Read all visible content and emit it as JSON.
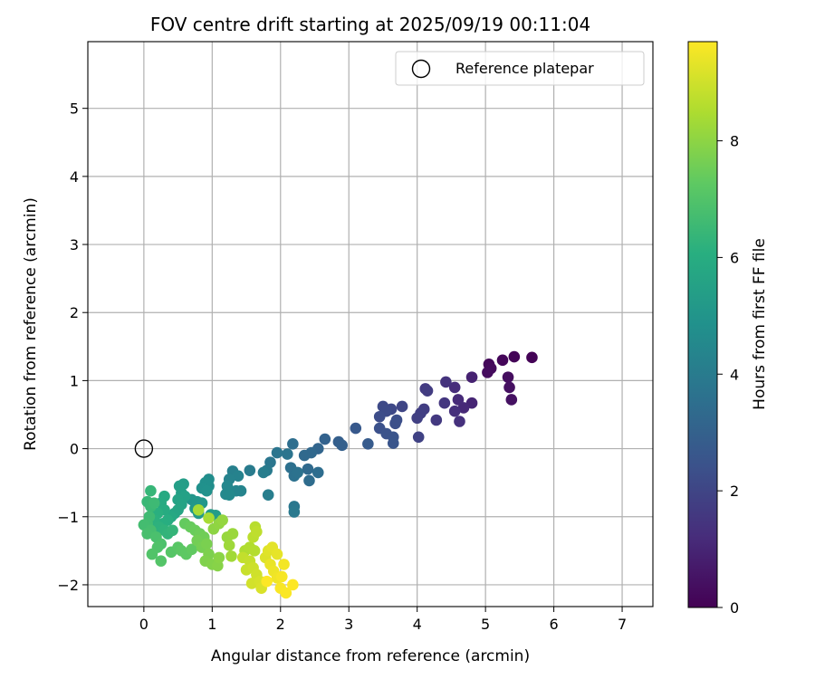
{
  "chart_data": {
    "type": "scatter",
    "title": "FOV centre drift starting at 2025/09/19 00:11:04",
    "xlabel": "Angular distance from reference (arcmin)",
    "ylabel": "Rotation from reference (arcmin)",
    "xlim": [
      -0.82,
      7.45
    ],
    "ylim": [
      -2.32,
      5.98
    ],
    "xticks": [
      0,
      1,
      2,
      3,
      4,
      5,
      6,
      7
    ],
    "yticks": [
      -2,
      -1,
      0,
      1,
      2,
      3,
      4,
      5
    ],
    "grid": true,
    "legend": {
      "position": "top-right",
      "label": "Reference platepar"
    },
    "reference_point": {
      "x": 0,
      "y": 0
    },
    "colorbar": {
      "label": "Hours from first FF file",
      "min": 0,
      "max": 9.7,
      "ticks": [
        0,
        2,
        4,
        6,
        8
      ],
      "colormap": "viridis"
    },
    "points": [
      {
        "x": 5.68,
        "y": 1.34,
        "h": 0.05
      },
      {
        "x": 5.42,
        "y": 1.35,
        "h": 0.1
      },
      {
        "x": 5.25,
        "y": 1.3,
        "h": 0.15
      },
      {
        "x": 5.05,
        "y": 1.24,
        "h": 0.2
      },
      {
        "x": 5.08,
        "y": 1.18,
        "h": 0.25
      },
      {
        "x": 5.03,
        "y": 1.12,
        "h": 0.3
      },
      {
        "x": 5.33,
        "y": 1.05,
        "h": 0.35
      },
      {
        "x": 5.35,
        "y": 0.9,
        "h": 0.4
      },
      {
        "x": 5.38,
        "y": 0.72,
        "h": 0.45
      },
      {
        "x": 4.8,
        "y": 1.05,
        "h": 0.9
      },
      {
        "x": 4.8,
        "y": 0.67,
        "h": 1.0
      },
      {
        "x": 4.68,
        "y": 0.6,
        "h": 1.1
      },
      {
        "x": 4.6,
        "y": 0.72,
        "h": 1.15
      },
      {
        "x": 4.55,
        "y": 0.9,
        "h": 1.2
      },
      {
        "x": 4.55,
        "y": 0.55,
        "h": 1.3
      },
      {
        "x": 4.62,
        "y": 0.4,
        "h": 1.35
      },
      {
        "x": 4.42,
        "y": 0.98,
        "h": 1.4
      },
      {
        "x": 4.4,
        "y": 0.67,
        "h": 1.5
      },
      {
        "x": 4.28,
        "y": 0.42,
        "h": 1.6
      },
      {
        "x": 4.12,
        "y": 0.88,
        "h": 1.65
      },
      {
        "x": 4.15,
        "y": 0.85,
        "h": 1.7
      },
      {
        "x": 4.1,
        "y": 0.58,
        "h": 1.75
      },
      {
        "x": 4.05,
        "y": 0.52,
        "h": 1.8
      },
      {
        "x": 4.0,
        "y": 0.45,
        "h": 1.85
      },
      {
        "x": 4.02,
        "y": 0.17,
        "h": 1.9
      },
      {
        "x": 3.78,
        "y": 0.62,
        "h": 2.0
      },
      {
        "x": 3.62,
        "y": 0.58,
        "h": 2.1
      },
      {
        "x": 3.5,
        "y": 0.62,
        "h": 2.15
      },
      {
        "x": 3.55,
        "y": 0.55,
        "h": 2.2
      },
      {
        "x": 3.45,
        "y": 0.47,
        "h": 2.25
      },
      {
        "x": 3.7,
        "y": 0.42,
        "h": 2.3
      },
      {
        "x": 3.68,
        "y": 0.37,
        "h": 2.35
      },
      {
        "x": 3.45,
        "y": 0.3,
        "h": 2.4
      },
      {
        "x": 3.55,
        "y": 0.22,
        "h": 2.45
      },
      {
        "x": 3.65,
        "y": 0.17,
        "h": 2.5
      },
      {
        "x": 3.65,
        "y": 0.08,
        "h": 2.55
      },
      {
        "x": 3.1,
        "y": 0.3,
        "h": 2.7
      },
      {
        "x": 3.28,
        "y": 0.07,
        "h": 2.75
      },
      {
        "x": 2.85,
        "y": 0.1,
        "h": 2.9
      },
      {
        "x": 2.9,
        "y": 0.05,
        "h": 2.95
      },
      {
        "x": 2.65,
        "y": 0.14,
        "h": 3.05
      },
      {
        "x": 2.55,
        "y": 0.0,
        "h": 3.15
      },
      {
        "x": 2.45,
        "y": -0.06,
        "h": 3.25
      },
      {
        "x": 2.35,
        "y": -0.1,
        "h": 3.3
      },
      {
        "x": 2.4,
        "y": -0.3,
        "h": 3.35
      },
      {
        "x": 2.42,
        "y": -0.47,
        "h": 3.4
      },
      {
        "x": 2.55,
        "y": -0.35,
        "h": 3.45
      },
      {
        "x": 2.18,
        "y": 0.07,
        "h": 3.5
      },
      {
        "x": 2.15,
        "y": -0.28,
        "h": 3.55
      },
      {
        "x": 2.2,
        "y": -0.4,
        "h": 3.6
      },
      {
        "x": 2.25,
        "y": -0.35,
        "h": 3.65
      },
      {
        "x": 2.1,
        "y": -0.08,
        "h": 3.7
      },
      {
        "x": 1.95,
        "y": -0.06,
        "h": 3.75
      },
      {
        "x": 1.85,
        "y": -0.2,
        "h": 3.8
      },
      {
        "x": 2.2,
        "y": -0.85,
        "h": 3.85
      },
      {
        "x": 2.2,
        "y": -0.93,
        "h": 3.9
      },
      {
        "x": 1.8,
        "y": -0.32,
        "h": 3.95
      },
      {
        "x": 1.55,
        "y": -0.32,
        "h": 4.0
      },
      {
        "x": 1.75,
        "y": -0.35,
        "h": 4.05
      },
      {
        "x": 1.82,
        "y": -0.68,
        "h": 4.1
      },
      {
        "x": 1.3,
        "y": -0.33,
        "h": 4.2
      },
      {
        "x": 1.38,
        "y": -0.4,
        "h": 4.25
      },
      {
        "x": 1.25,
        "y": -0.45,
        "h": 4.3
      },
      {
        "x": 1.42,
        "y": -0.62,
        "h": 4.35
      },
      {
        "x": 1.35,
        "y": -0.62,
        "h": 4.4
      },
      {
        "x": 1.22,
        "y": -0.55,
        "h": 4.45
      },
      {
        "x": 1.2,
        "y": -0.67,
        "h": 4.5
      },
      {
        "x": 1.25,
        "y": -0.68,
        "h": 4.55
      },
      {
        "x": 0.95,
        "y": -0.45,
        "h": 4.7
      },
      {
        "x": 0.95,
        "y": -0.55,
        "h": 4.75
      },
      {
        "x": 0.9,
        "y": -0.5,
        "h": 4.8
      },
      {
        "x": 0.85,
        "y": -0.58,
        "h": 4.85
      },
      {
        "x": 0.92,
        "y": -0.62,
        "h": 4.9
      },
      {
        "x": 0.7,
        "y": -0.75,
        "h": 5.0
      },
      {
        "x": 0.78,
        "y": -0.78,
        "h": 5.05
      },
      {
        "x": 0.85,
        "y": -0.8,
        "h": 5.1
      },
      {
        "x": 0.75,
        "y": -0.88,
        "h": 5.15
      },
      {
        "x": 0.8,
        "y": -0.95,
        "h": 5.2
      },
      {
        "x": 0.98,
        "y": -0.97,
        "h": 5.25
      },
      {
        "x": 1.05,
        "y": -0.98,
        "h": 5.3
      },
      {
        "x": 0.58,
        "y": -0.52,
        "h": 5.35
      },
      {
        "x": 0.52,
        "y": -0.55,
        "h": 5.4
      },
      {
        "x": 0.55,
        "y": -0.65,
        "h": 5.45
      },
      {
        "x": 0.6,
        "y": -0.7,
        "h": 5.5
      },
      {
        "x": 0.5,
        "y": -0.75,
        "h": 5.55
      },
      {
        "x": 0.55,
        "y": -0.82,
        "h": 5.6
      },
      {
        "x": 0.5,
        "y": -0.9,
        "h": 5.65
      },
      {
        "x": 0.45,
        "y": -0.95,
        "h": 5.7
      },
      {
        "x": 0.4,
        "y": -1.0,
        "h": 5.8
      },
      {
        "x": 0.3,
        "y": -0.7,
        "h": 5.85
      },
      {
        "x": 0.25,
        "y": -0.8,
        "h": 5.9
      },
      {
        "x": 0.3,
        "y": -0.9,
        "h": 5.95
      },
      {
        "x": 0.35,
        "y": -1.05,
        "h": 6.0
      },
      {
        "x": 0.28,
        "y": -1.1,
        "h": 6.05
      },
      {
        "x": 0.2,
        "y": -0.95,
        "h": 6.1
      },
      {
        "x": 0.15,
        "y": -1.05,
        "h": 6.15
      },
      {
        "x": 0.22,
        "y": -1.15,
        "h": 6.2
      },
      {
        "x": 0.3,
        "y": -1.2,
        "h": 6.25
      },
      {
        "x": 0.35,
        "y": -1.25,
        "h": 6.3
      },
      {
        "x": 0.42,
        "y": -1.2,
        "h": 6.35
      },
      {
        "x": 0.1,
        "y": -0.62,
        "h": 6.4
      },
      {
        "x": 0.05,
        "y": -0.78,
        "h": 6.45
      },
      {
        "x": 0.1,
        "y": -0.85,
        "h": 6.5
      },
      {
        "x": 0.15,
        "y": -0.8,
        "h": 6.55
      },
      {
        "x": 0.08,
        "y": -1.0,
        "h": 6.6
      },
      {
        "x": 0.05,
        "y": -1.1,
        "h": 6.65
      },
      {
        "x": 0.0,
        "y": -1.12,
        "h": 6.7
      },
      {
        "x": 0.1,
        "y": -1.2,
        "h": 6.75
      },
      {
        "x": 0.05,
        "y": -1.25,
        "h": 6.8
      },
      {
        "x": 0.18,
        "y": -1.3,
        "h": 6.85
      },
      {
        "x": 0.25,
        "y": -1.4,
        "h": 6.9
      },
      {
        "x": 0.2,
        "y": -1.45,
        "h": 6.95
      },
      {
        "x": 0.12,
        "y": -1.55,
        "h": 7.0
      },
      {
        "x": 0.25,
        "y": -1.65,
        "h": 7.05
      },
      {
        "x": 0.4,
        "y": -1.52,
        "h": 7.1
      },
      {
        "x": 0.5,
        "y": -1.45,
        "h": 7.15
      },
      {
        "x": 0.55,
        "y": -1.5,
        "h": 7.2
      },
      {
        "x": 0.62,
        "y": -1.55,
        "h": 7.25
      },
      {
        "x": 0.7,
        "y": -1.48,
        "h": 7.3
      },
      {
        "x": 0.6,
        "y": -1.1,
        "h": 7.35
      },
      {
        "x": 0.68,
        "y": -1.15,
        "h": 7.4
      },
      {
        "x": 0.75,
        "y": -1.2,
        "h": 7.45
      },
      {
        "x": 0.82,
        "y": -1.25,
        "h": 7.5
      },
      {
        "x": 0.88,
        "y": -1.3,
        "h": 7.55
      },
      {
        "x": 0.78,
        "y": -1.35,
        "h": 7.6
      },
      {
        "x": 0.85,
        "y": -1.45,
        "h": 7.65
      },
      {
        "x": 0.92,
        "y": -1.4,
        "h": 7.7
      },
      {
        "x": 0.95,
        "y": -1.55,
        "h": 7.75
      },
      {
        "x": 0.9,
        "y": -1.65,
        "h": 7.8
      },
      {
        "x": 1.0,
        "y": -1.7,
        "h": 7.85
      },
      {
        "x": 1.08,
        "y": -1.72,
        "h": 7.9
      },
      {
        "x": 1.1,
        "y": -1.6,
        "h": 7.95
      },
      {
        "x": 1.02,
        "y": -1.18,
        "h": 8.0
      },
      {
        "x": 1.1,
        "y": -1.1,
        "h": 8.05
      },
      {
        "x": 1.15,
        "y": -1.05,
        "h": 8.1
      },
      {
        "x": 1.22,
        "y": -1.3,
        "h": 8.15
      },
      {
        "x": 1.3,
        "y": -1.25,
        "h": 8.2
      },
      {
        "x": 1.25,
        "y": -1.42,
        "h": 8.25
      },
      {
        "x": 1.28,
        "y": -1.58,
        "h": 8.3
      },
      {
        "x": 0.8,
        "y": -0.9,
        "h": 8.35
      },
      {
        "x": 0.95,
        "y": -1.02,
        "h": 8.4
      },
      {
        "x": 1.48,
        "y": -1.5,
        "h": 8.5
      },
      {
        "x": 1.55,
        "y": -1.45,
        "h": 8.55
      },
      {
        "x": 1.62,
        "y": -1.5,
        "h": 8.6
      },
      {
        "x": 1.63,
        "y": -1.15,
        "h": 8.65
      },
      {
        "x": 1.6,
        "y": -1.3,
        "h": 8.7
      },
      {
        "x": 1.65,
        "y": -1.22,
        "h": 8.75
      },
      {
        "x": 1.45,
        "y": -1.6,
        "h": 8.8
      },
      {
        "x": 1.55,
        "y": -1.65,
        "h": 8.85
      },
      {
        "x": 1.5,
        "y": -1.78,
        "h": 8.9
      },
      {
        "x": 1.6,
        "y": -1.75,
        "h": 8.95
      },
      {
        "x": 1.65,
        "y": -1.85,
        "h": 9.0
      },
      {
        "x": 1.58,
        "y": -1.98,
        "h": 9.05
      },
      {
        "x": 1.7,
        "y": -1.95,
        "h": 9.1
      },
      {
        "x": 1.72,
        "y": -2.05,
        "h": 9.15
      },
      {
        "x": 1.78,
        "y": -1.6,
        "h": 9.2
      },
      {
        "x": 1.82,
        "y": -1.5,
        "h": 9.25
      },
      {
        "x": 1.88,
        "y": -1.45,
        "h": 9.3
      },
      {
        "x": 1.95,
        "y": -1.55,
        "h": 9.35
      },
      {
        "x": 1.85,
        "y": -1.7,
        "h": 9.4
      },
      {
        "x": 1.9,
        "y": -1.8,
        "h": 9.45
      },
      {
        "x": 1.95,
        "y": -1.9,
        "h": 9.5
      },
      {
        "x": 2.05,
        "y": -1.7,
        "h": 9.55
      },
      {
        "x": 2.02,
        "y": -1.88,
        "h": 9.6
      },
      {
        "x": 2.0,
        "y": -2.05,
        "h": 9.62
      },
      {
        "x": 2.08,
        "y": -2.12,
        "h": 9.65
      },
      {
        "x": 2.18,
        "y": -2.0,
        "h": 9.7
      },
      {
        "x": 1.8,
        "y": -1.95,
        "h": 9.68
      }
    ]
  }
}
